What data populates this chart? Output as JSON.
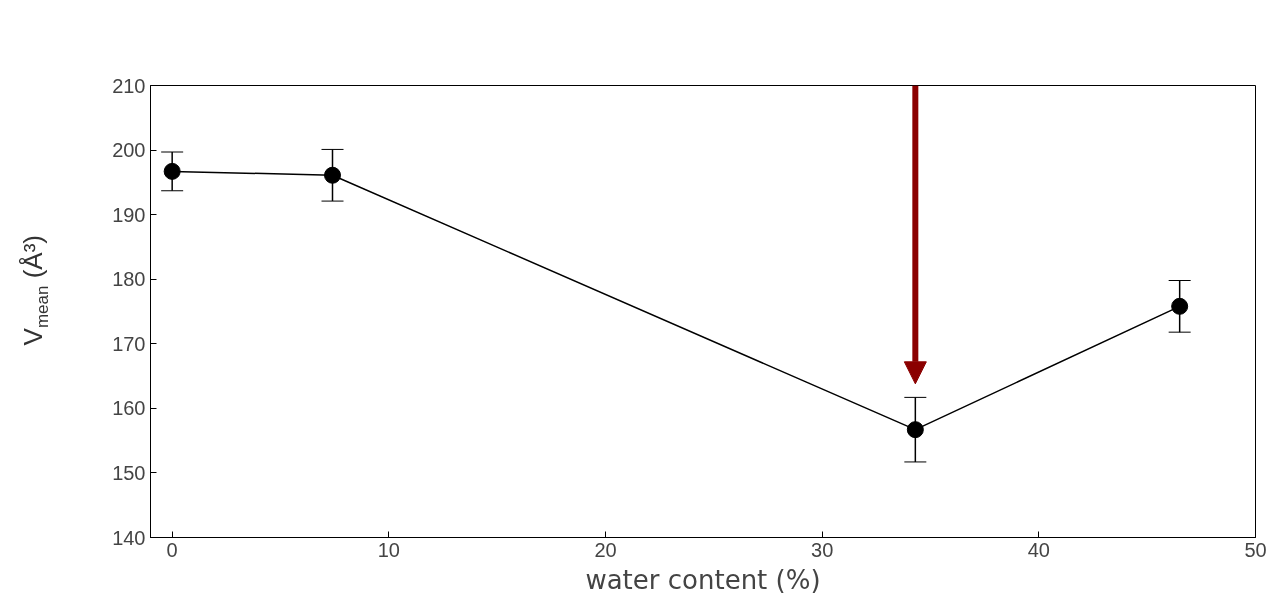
{
  "chart_data": {
    "type": "line",
    "xlabel": "water content (%)",
    "ylabel": "V$_{mean}$ (Å³)",
    "x": [
      0.0,
      7.4,
      34.3,
      46.5
    ],
    "series": [
      {
        "color": "#000000",
        "values": [
          196.7,
          196.1,
          156.7,
          175.8
        ],
        "errors": [
          3,
          4,
          5,
          4
        ]
      }
    ],
    "xlim": [
      -1,
      50
    ],
    "ylim": [
      140,
      210
    ],
    "xticks": [
      0,
      10,
      20,
      30,
      40,
      50
    ],
    "yticks": [
      140,
      150,
      160,
      170,
      180,
      190,
      200,
      210
    ],
    "marker": "circle",
    "line_style": "solid",
    "grid": false
  }
}
